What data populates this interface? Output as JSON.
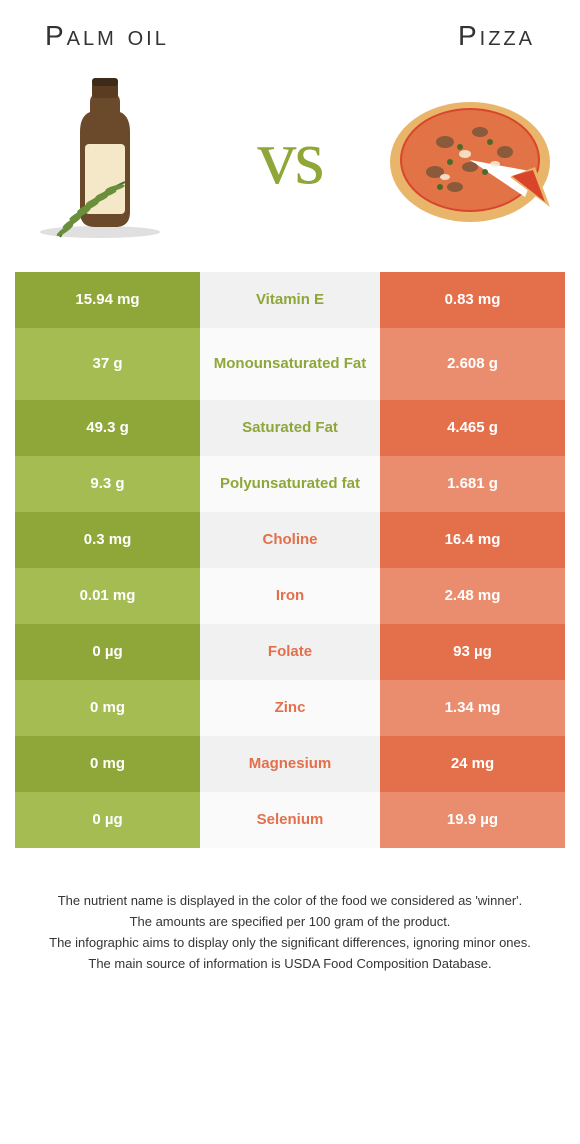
{
  "colors": {
    "left_dark": "#8fa638",
    "left_light": "#a5bc52",
    "right_dark": "#e36f4b",
    "right_light": "#ea8d6f",
    "mid_dark": "#f1f1f1",
    "mid_light": "#fafafa",
    "text_left": "#8fa638",
    "text_right": "#e36f4b"
  },
  "header": {
    "left_title": "Palm oil",
    "right_title": "Pizza",
    "vs_label": "vs"
  },
  "rows": [
    {
      "left": "15.94 mg",
      "mid": "Vitamin E",
      "right": "0.83 mg",
      "winner": "left",
      "tall": false
    },
    {
      "left": "37 g",
      "mid": "Monounsaturated Fat",
      "right": "2.608 g",
      "winner": "left",
      "tall": true
    },
    {
      "left": "49.3 g",
      "mid": "Saturated Fat",
      "right": "4.465 g",
      "winner": "left",
      "tall": false
    },
    {
      "left": "9.3 g",
      "mid": "Polyunsaturated fat",
      "right": "1.681 g",
      "winner": "left",
      "tall": false
    },
    {
      "left": "0.3 mg",
      "mid": "Choline",
      "right": "16.4 mg",
      "winner": "right",
      "tall": false
    },
    {
      "left": "0.01 mg",
      "mid": "Iron",
      "right": "2.48 mg",
      "winner": "right",
      "tall": false
    },
    {
      "left": "0 µg",
      "mid": "Folate",
      "right": "93 µg",
      "winner": "right",
      "tall": false
    },
    {
      "left": "0 mg",
      "mid": "Zinc",
      "right": "1.34 mg",
      "winner": "right",
      "tall": false
    },
    {
      "left": "0 mg",
      "mid": "Magnesium",
      "right": "24 mg",
      "winner": "right",
      "tall": false
    },
    {
      "left": "0 µg",
      "mid": "Selenium",
      "right": "19.9 µg",
      "winner": "right",
      "tall": false
    }
  ],
  "footer": {
    "line1": "The nutrient name is displayed in the color of the food we considered as 'winner'.",
    "line2": "The amounts are specified per 100 gram of the product.",
    "line3": "The infographic aims to display only the significant differences, ignoring minor ones.",
    "line4": "The main source of information is USDA Food Composition Database."
  }
}
